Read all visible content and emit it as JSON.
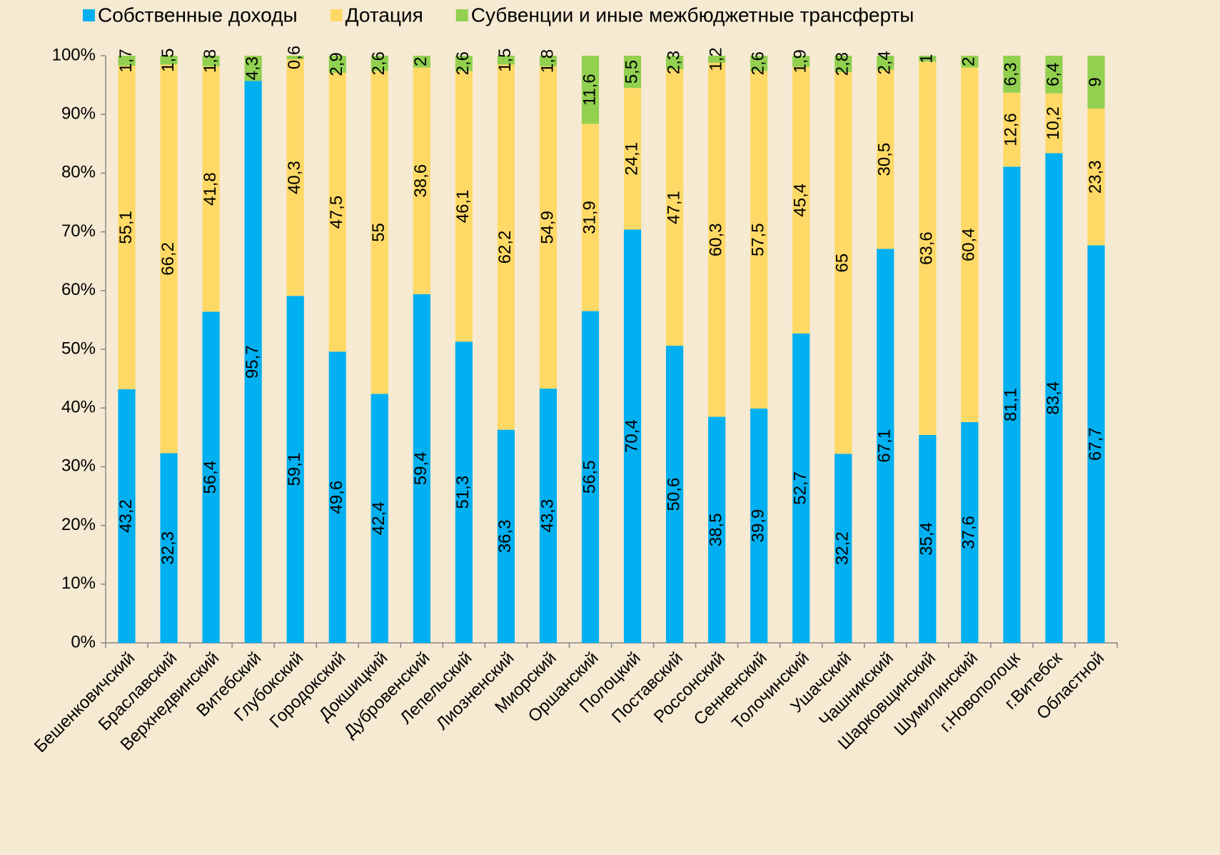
{
  "chart_data": {
    "type": "stacked_bar",
    "categories": [
      "Бешенковичский",
      "Браславский",
      "Верхнедвинский",
      "Витебский",
      "Глубокский",
      "Городокский",
      "Докшицкий",
      "Дубровенский",
      "Лепельский",
      "Лиозненский",
      "Миорский",
      "Оршанский",
      "Полоцкий",
      "Поставский",
      "Россонский",
      "Сенненский",
      "Толочинский",
      "Ушачский",
      "Чашникский",
      "Шарковщинский",
      "Шумилинский",
      "г.Новополоцк",
      "г.Витебск",
      "Областной"
    ],
    "series": [
      {
        "name": "Собственные доходы",
        "color": "#00b0f0",
        "values": [
          43.2,
          32.3,
          56.4,
          95.7,
          59.1,
          49.6,
          42.4,
          59.4,
          51.3,
          36.3,
          43.3,
          56.5,
          70.4,
          50.6,
          38.5,
          39.9,
          52.7,
          32.2,
          67.1,
          35.4,
          37.6,
          81.1,
          83.4,
          67.7
        ],
        "value_labels": [
          "43,2",
          "32,3",
          "56,4",
          "95,7",
          "59,1",
          "49,6",
          "42,4",
          "59,4",
          "51,3",
          "36,3",
          "43,3",
          "56,5",
          "70,4",
          "50,6",
          "38,5",
          "39,9",
          "52,7",
          "32,2",
          "67,1",
          "35,4",
          "37,6",
          "81,1",
          "83,4",
          "67,7"
        ]
      },
      {
        "name": "Дотация",
        "color": "#ffd966",
        "values": [
          55.1,
          66.2,
          41.8,
          null,
          40.3,
          47.5,
          55,
          38.6,
          46.1,
          62.2,
          54.9,
          31.9,
          24.1,
          47.1,
          60.3,
          57.5,
          45.4,
          65,
          30.5,
          63.6,
          60.4,
          12.6,
          10.2,
          23.3
        ],
        "value_labels": [
          "55,1",
          "66,2",
          "41,8",
          null,
          "40,3",
          "47,5",
          "55",
          "38,6",
          "46,1",
          "62,2",
          "54,9",
          "31,9",
          "24,1",
          "47,1",
          "60,3",
          "57,5",
          "45,4",
          "65",
          "30,5",
          "63,6",
          "60,4",
          "12,6",
          "10,2",
          "23,3"
        ]
      },
      {
        "name": "Субвенции и иные межбюджетные трансферты",
        "color": "#92d050",
        "values": [
          1.7,
          1.5,
          1.8,
          4.3,
          0.6,
          2.9,
          2.6,
          2,
          2.6,
          1.5,
          1.8,
          11.6,
          5.5,
          2.3,
          1.2,
          2.6,
          1.9,
          2.8,
          2.4,
          1,
          2,
          6.3,
          6.4,
          9
        ],
        "value_labels": [
          "1,7",
          "1,5",
          "1,8",
          "4,3",
          "0,6",
          "2,9",
          "2,6",
          "2",
          "2,6",
          "1,5",
          "1,8",
          "11,6",
          "5,5",
          "2,3",
          "1,2",
          "2,6",
          "1,9",
          "2,8",
          "2,4",
          "1",
          "2",
          "6,3",
          "6,4",
          "9"
        ]
      }
    ],
    "ylim": [
      0,
      100
    ],
    "yticks": [
      {
        "value": 0,
        "label": "0%"
      },
      {
        "value": 10,
        "label": "10%"
      },
      {
        "value": 20,
        "label": "20%"
      },
      {
        "value": 30,
        "label": "30%"
      },
      {
        "value": 40,
        "label": "40%"
      },
      {
        "value": 50,
        "label": "50%"
      },
      {
        "value": 60,
        "label": "60%"
      },
      {
        "value": 70,
        "label": "70%"
      },
      {
        "value": 80,
        "label": "80%"
      },
      {
        "value": 90,
        "label": "90%"
      },
      {
        "value": 100,
        "label": "100%"
      }
    ],
    "legend": "top"
  }
}
